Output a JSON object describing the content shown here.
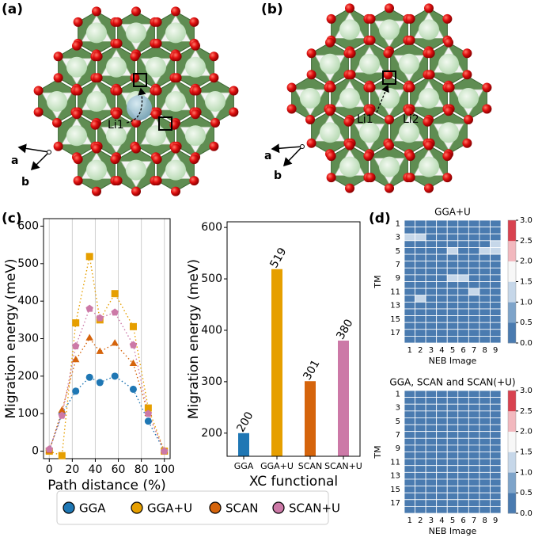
{
  "structures": [
    {
      "label": "(a)",
      "sites": [
        "Li1"
      ],
      "axes": [
        "a",
        "b"
      ]
    },
    {
      "label": "(b)",
      "sites": [
        "Li1",
        "Li2"
      ],
      "axes": [
        "a",
        "b"
      ]
    }
  ],
  "panel_labels": [
    "(c)",
    "(d)"
  ],
  "chart_data": [
    {
      "type": "line",
      "xlabel": "Path distance (%)",
      "ylabel": "Migration energy (meV)",
      "x": [
        0,
        11,
        23,
        35,
        44,
        57,
        73,
        86,
        100
      ],
      "series": [
        {
          "name": "GGA",
          "color": "#1f77b4",
          "marker": "circle",
          "values": [
            2,
            100,
            160,
            197,
            183,
            200,
            165,
            80,
            0
          ]
        },
        {
          "name": "GGA+U",
          "color": "#e69f00",
          "marker": "square",
          "values": [
            0,
            -12,
            342,
            519,
            350,
            420,
            332,
            115,
            0
          ]
        },
        {
          "name": "SCAN",
          "color": "#d5640c",
          "marker": "triangle",
          "values": [
            0,
            108,
            243,
            301,
            265,
            287,
            233,
            100,
            0
          ]
        },
        {
          "name": "SCAN+U",
          "color": "#cc79a7",
          "marker": "pentagon",
          "values": [
            5,
            95,
            280,
            380,
            355,
            370,
            283,
            100,
            0
          ]
        }
      ],
      "xlim": [
        -5,
        105
      ],
      "ylim": [
        -20,
        620
      ],
      "xticks": [
        0,
        20,
        40,
        60,
        80,
        100
      ],
      "yticks": [
        0,
        100,
        200,
        300,
        400,
        500,
        600
      ],
      "grid": "x"
    },
    {
      "type": "bar",
      "xlabel": "XC functional",
      "ylabel": "Migration energy (meV)",
      "categories": [
        "GGA",
        "GGA+U",
        "SCAN",
        "SCAN+U"
      ],
      "values": [
        200,
        519,
        301,
        380
      ],
      "colors": [
        "#1f77b4",
        "#e69f00",
        "#d5640c",
        "#cc79a7"
      ],
      "ylim": [
        155,
        611
      ],
      "yticks": [
        200,
        300,
        400,
        500,
        600
      ]
    },
    {
      "type": "heatmap",
      "title": "GGA+U",
      "xlabel": "NEB Image",
      "ylabel": "TM",
      "x": [
        "1",
        "2",
        "3",
        "4",
        "5",
        "6",
        "7",
        "8",
        "9"
      ],
      "y": [
        "1",
        null,
        "3",
        null,
        "5",
        null,
        "7",
        null,
        "9",
        null,
        "11",
        null,
        "13",
        null,
        "15",
        null,
        "17",
        null
      ],
      "z": [
        [
          0,
          0,
          0,
          0,
          0,
          0,
          0,
          0,
          0
        ],
        [
          0,
          0,
          0,
          0,
          0,
          0,
          0,
          0,
          0
        ],
        [
          1.2,
          1.2,
          0,
          0,
          0,
          0,
          0,
          0,
          0
        ],
        [
          0,
          0,
          0,
          0,
          0,
          0,
          0,
          0,
          1.2
        ],
        [
          0,
          0,
          0,
          0,
          1.2,
          0,
          0,
          1.2,
          1.2
        ],
        [
          0,
          0,
          0,
          0,
          0,
          0,
          0,
          0,
          0
        ],
        [
          0,
          0,
          0,
          0,
          0,
          0,
          0,
          0,
          0
        ],
        [
          0,
          0,
          0,
          0,
          0,
          0,
          0,
          0,
          0
        ],
        [
          0,
          0,
          0,
          0,
          1.2,
          1.2,
          0,
          0,
          0
        ],
        [
          0,
          0,
          0,
          0,
          0,
          0,
          0,
          0,
          0
        ],
        [
          0,
          0,
          0,
          0,
          0,
          0,
          1.2,
          0,
          0
        ],
        [
          0,
          1.2,
          0,
          0,
          0,
          0,
          0,
          0,
          0
        ],
        [
          0,
          0,
          0,
          0,
          0,
          0,
          0,
          0,
          0
        ],
        [
          0,
          0,
          0,
          0,
          0,
          0,
          0,
          0,
          0
        ],
        [
          0,
          0,
          0,
          0,
          0,
          0,
          0,
          0,
          0
        ],
        [
          0,
          0,
          0,
          0,
          0,
          0,
          0,
          0,
          0
        ],
        [
          0,
          0,
          0,
          0,
          0,
          0,
          0,
          0,
          0
        ],
        [
          0,
          0,
          0,
          0,
          0,
          0,
          0,
          0,
          0
        ]
      ],
      "colormap": [
        "#4a7bb0",
        "#7ea4ca",
        "#c6d7e9",
        "#f7f7f7",
        "#f2b8be",
        "#d8424f"
      ],
      "clim": [
        0,
        3
      ],
      "cticks": [
        {
          "value": 0,
          "label": "0.0"
        },
        {
          "value": 0.5,
          "label": "0.5"
        },
        {
          "value": 1,
          "label": "1.0"
        },
        {
          "value": 1.5,
          "label": "1.5"
        },
        {
          "value": 2,
          "label": "2.0"
        },
        {
          "value": 2.5,
          "label": "2.5"
        },
        {
          "value": 3,
          "label": "3.0"
        }
      ]
    },
    {
      "type": "heatmap",
      "title": "GGA, SCAN and SCAN(+U)",
      "xlabel": "NEB Image",
      "ylabel": "TM",
      "x": [
        "1",
        "2",
        "3",
        "4",
        "5",
        "6",
        "7",
        "8",
        "9"
      ],
      "y": [
        "1",
        null,
        "3",
        null,
        "5",
        null,
        "7",
        null,
        "9",
        null,
        "11",
        null,
        "13",
        null,
        "15",
        null,
        "17",
        null
      ],
      "z": [
        [
          0,
          0,
          0,
          0,
          0,
          0,
          0,
          0,
          0
        ],
        [
          0,
          0,
          0,
          0,
          0,
          0,
          0,
          0,
          0
        ],
        [
          0,
          0,
          0,
          0,
          0,
          0,
          0,
          0,
          0
        ],
        [
          0,
          0,
          0,
          0,
          0,
          0,
          0,
          0,
          0
        ],
        [
          0,
          0,
          0,
          0,
          0,
          0,
          0,
          0,
          0
        ],
        [
          0,
          0,
          0,
          0,
          0,
          0,
          0,
          0,
          0
        ],
        [
          0,
          0,
          0,
          0,
          0,
          0,
          0,
          0,
          0
        ],
        [
          0,
          0,
          0,
          0,
          0,
          0,
          0,
          0,
          0
        ],
        [
          0,
          0,
          0,
          0,
          0,
          0,
          0,
          0,
          0
        ],
        [
          0,
          0,
          0,
          0,
          0,
          0,
          0,
          0,
          0
        ],
        [
          0,
          0,
          0,
          0,
          0,
          0,
          0,
          0,
          0
        ],
        [
          0,
          0,
          0,
          0,
          0,
          0,
          0,
          0,
          0
        ],
        [
          0,
          0,
          0,
          0,
          0,
          0,
          0,
          0,
          0
        ],
        [
          0,
          0,
          0,
          0,
          0,
          0,
          0,
          0,
          0
        ],
        [
          0,
          0,
          0,
          0,
          0,
          0,
          0,
          0,
          0
        ],
        [
          0,
          0,
          0,
          0,
          0,
          0,
          0,
          0,
          0
        ],
        [
          0,
          0,
          0,
          0,
          0,
          0,
          0,
          0,
          0
        ],
        [
          0,
          0,
          0,
          0,
          0,
          0,
          0,
          0,
          0
        ]
      ],
      "colormap": [
        "#4a7bb0",
        "#7ea4ca",
        "#c6d7e9",
        "#f7f7f7",
        "#f2b8be",
        "#d8424f"
      ],
      "clim": [
        0,
        3
      ],
      "cticks": [
        {
          "value": 0,
          "label": "0.0"
        },
        {
          "value": 0.5,
          "label": "0.5"
        },
        {
          "value": 1,
          "label": "1.0"
        },
        {
          "value": 1.5,
          "label": "1.5"
        },
        {
          "value": 2,
          "label": "2.0"
        },
        {
          "value": 2.5,
          "label": "2.5"
        },
        {
          "value": 3,
          "label": "3.0"
        }
      ]
    }
  ]
}
